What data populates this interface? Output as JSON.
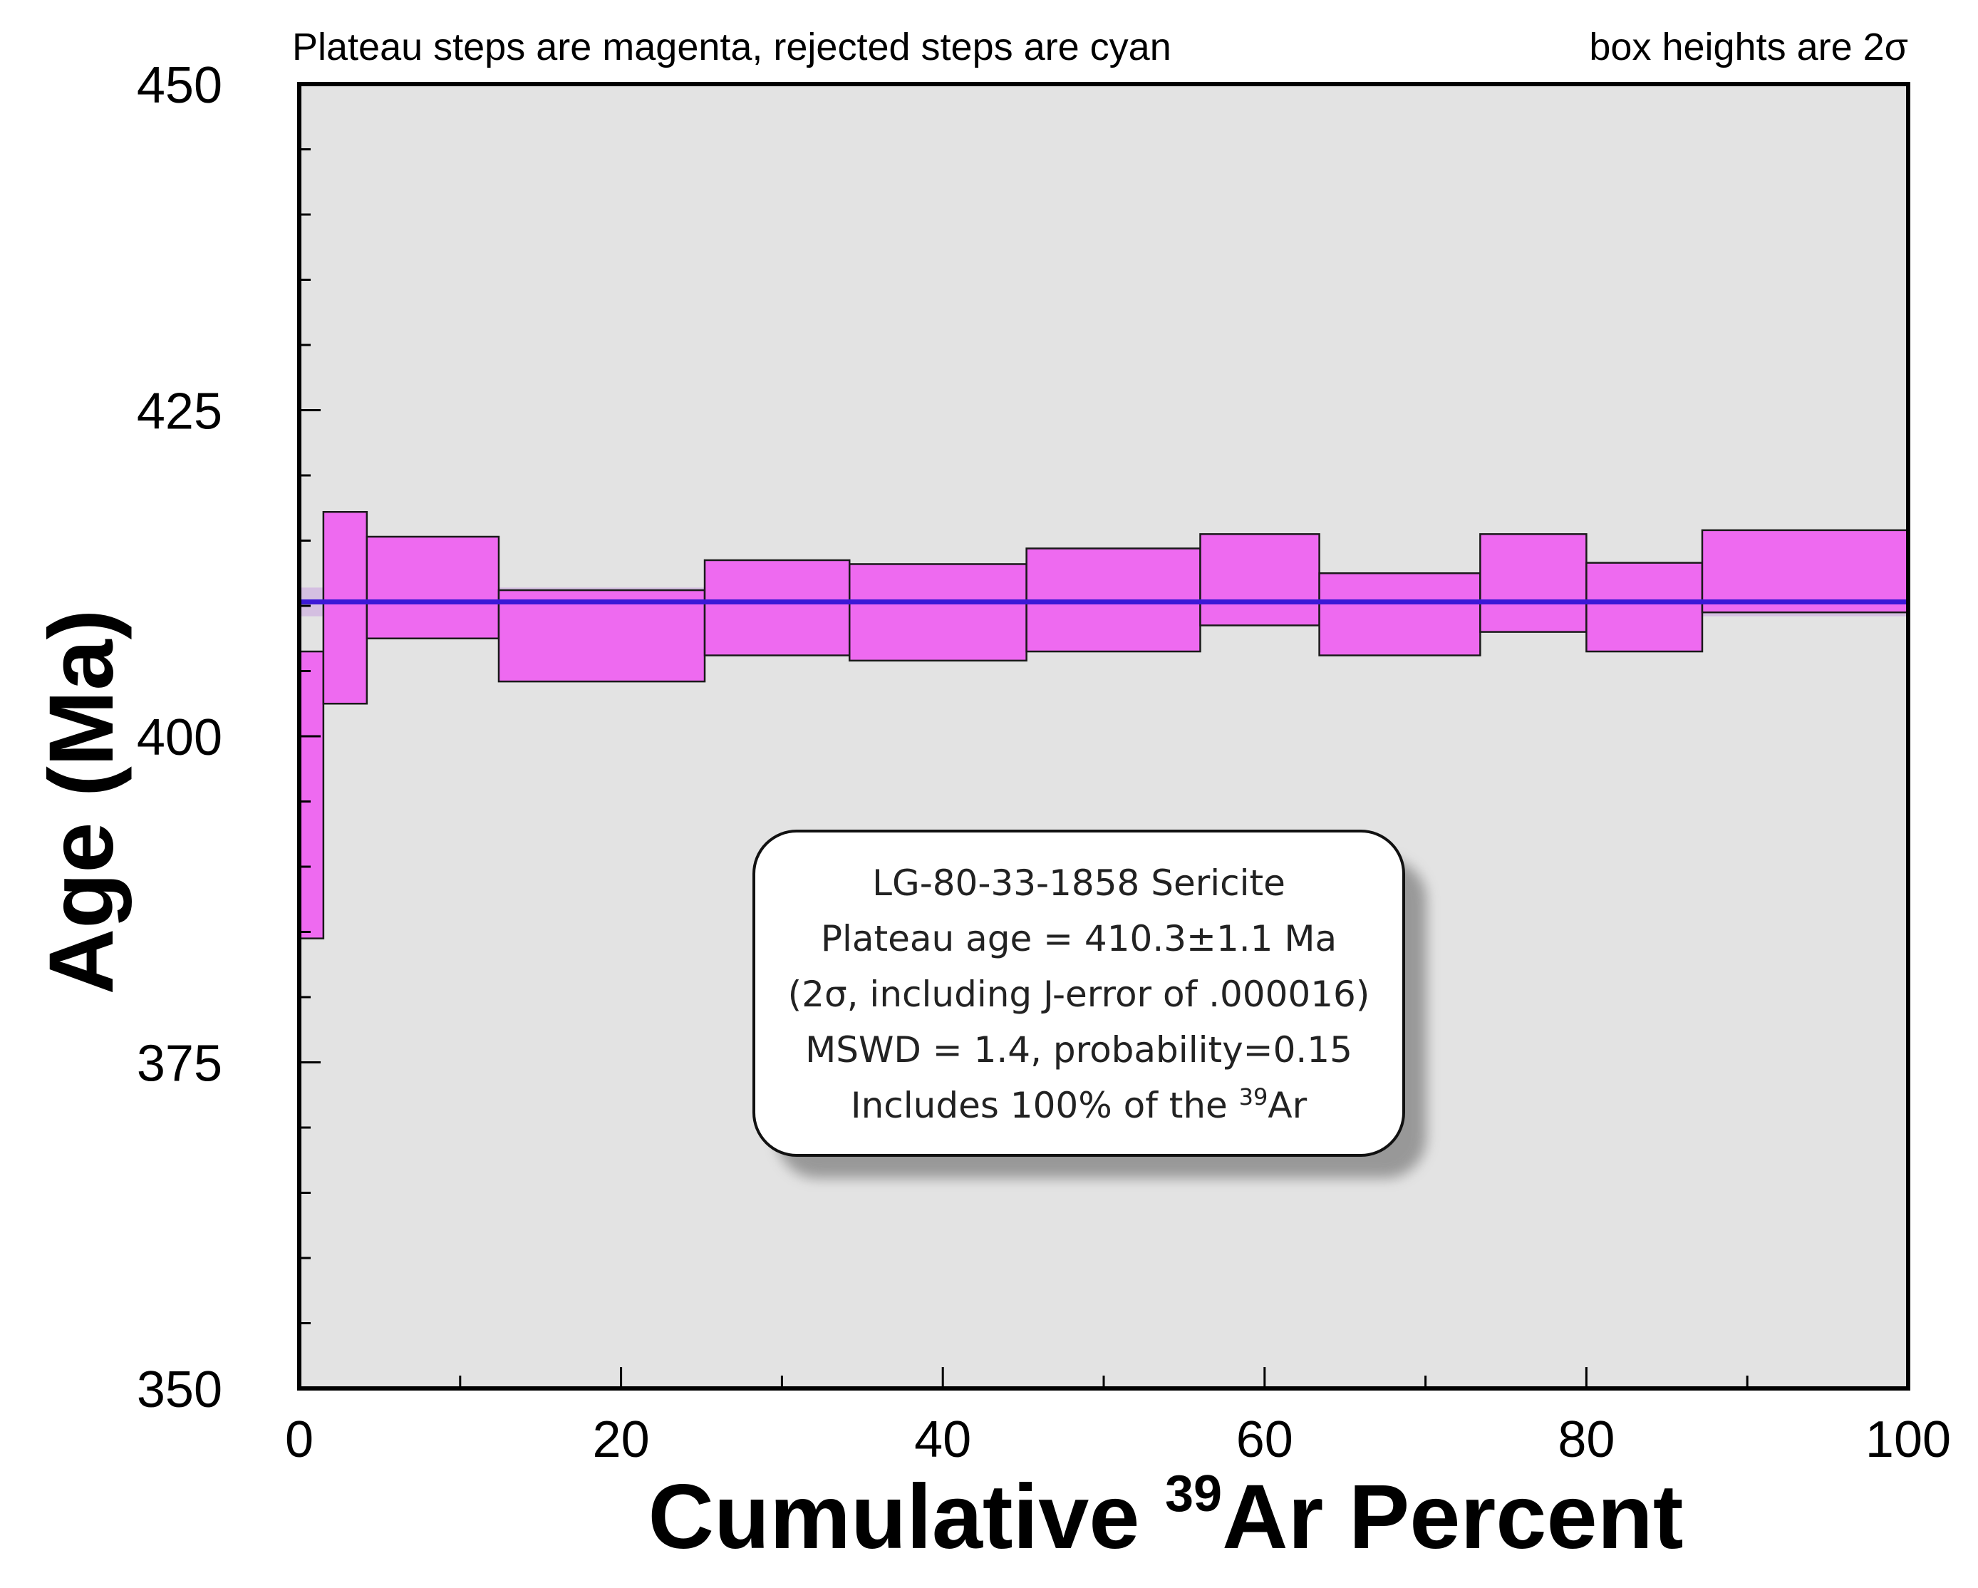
{
  "chart_data": {
    "type": "step-spectrum",
    "top_note_left": "Plateau steps are magenta, rejected steps are cyan",
    "top_note_right": "box heights are 2σ",
    "ylabel": "Age (Ma)",
    "xlabel_prefix": "Cumulative ",
    "xlabel_sup": "39",
    "xlabel_suffix": "Ar Percent",
    "xlim": [
      0,
      100
    ],
    "ylim": [
      350,
      450
    ],
    "x_ticks": [
      0,
      20,
      40,
      60,
      80,
      100
    ],
    "x_tick_labels": [
      "0",
      "20",
      "40",
      "60",
      "80",
      "100"
    ],
    "y_ticks": [
      350,
      375,
      400,
      425,
      450
    ],
    "y_tick_labels": [
      "350",
      "375",
      "400",
      "425",
      "450"
    ],
    "plateau_age": 410.3,
    "plateau_error_2s": 1.1,
    "colors": {
      "plot_bg": "#e3e3e3",
      "plateau_step": "#ee6af0",
      "step_edge": "#1a1a1a",
      "plateau_line": "#3b18d6",
      "plateau_band": "#c9a3e0"
    },
    "steps": [
      {
        "x0": 0.0,
        "x1": 1.5,
        "age_min": 384.5,
        "age_max": 406.5
      },
      {
        "x0": 1.5,
        "x1": 4.2,
        "age_min": 402.5,
        "age_max": 417.2
      },
      {
        "x0": 4.2,
        "x1": 12.4,
        "age_min": 407.5,
        "age_max": 415.3
      },
      {
        "x0": 12.4,
        "x1": 25.2,
        "age_min": 404.2,
        "age_max": 411.2
      },
      {
        "x0": 25.2,
        "x1": 34.2,
        "age_min": 406.2,
        "age_max": 413.5
      },
      {
        "x0": 34.2,
        "x1": 45.2,
        "age_min": 405.8,
        "age_max": 413.2
      },
      {
        "x0": 45.2,
        "x1": 56.0,
        "age_min": 406.5,
        "age_max": 414.4
      },
      {
        "x0": 56.0,
        "x1": 63.4,
        "age_min": 408.5,
        "age_max": 415.5
      },
      {
        "x0": 63.4,
        "x1": 73.4,
        "age_min": 406.2,
        "age_max": 412.5
      },
      {
        "x0": 73.4,
        "x1": 80.0,
        "age_min": 408.0,
        "age_max": 415.5
      },
      {
        "x0": 80.0,
        "x1": 87.2,
        "age_min": 406.5,
        "age_max": 413.3
      },
      {
        "x0": 87.2,
        "x1": 100.0,
        "age_min": 409.5,
        "age_max": 415.8
      }
    ],
    "info_box": {
      "line1": "LG-80-33-1858 Sericite",
      "line2": "Plateau age = 410.3±1.1 Ma",
      "line3": "(2σ, including J-error of .000016)",
      "line4": "MSWD = 1.4, probability=0.15",
      "line5_prefix": "Includes 100% of the ",
      "line5_sup": "39",
      "line5_suffix": "Ar"
    }
  }
}
